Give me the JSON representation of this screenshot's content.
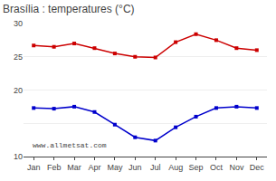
{
  "chart_data": {
    "type": "line",
    "title": "Brasília : temperatures (°C)",
    "categories": [
      "Jan",
      "Feb",
      "Mar",
      "Apr",
      "May",
      "Jun",
      "Jul",
      "Aug",
      "Sep",
      "Oct",
      "Nov",
      "Dec"
    ],
    "series": [
      {
        "color": "#cc0000",
        "marker": "square",
        "values": [
          26.7,
          26.5,
          27.0,
          26.3,
          25.5,
          25.0,
          24.9,
          27.2,
          28.4,
          27.5,
          26.3,
          26.0
        ]
      },
      {
        "color": "#0000cc",
        "marker": "square",
        "values": [
          17.3,
          17.2,
          17.5,
          16.7,
          14.8,
          12.9,
          12.4,
          14.4,
          16.0,
          17.3,
          17.5,
          17.3
        ]
      }
    ],
    "ylim": [
      10,
      30
    ],
    "yticks": [
      10,
      {
        "value": 15,
        "label": null
      },
      20,
      25,
      30
    ],
    "grid": true,
    "annotations": [
      "www.allmetsat.com"
    ]
  }
}
